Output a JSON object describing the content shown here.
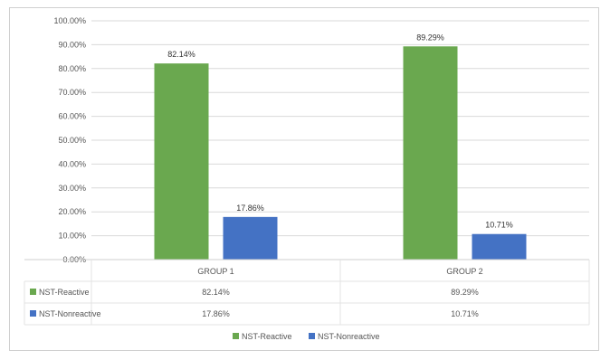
{
  "chart_data": {
    "type": "bar",
    "categories": [
      "GROUP 1",
      "GROUP 2"
    ],
    "series": [
      {
        "name": "NST-Reactive",
        "values": [
          82.14,
          89.29
        ],
        "labels": [
          "82.14%",
          "89.29%"
        ],
        "color": "#6aa84f"
      },
      {
        "name": "NST-Nonreactive",
        "values": [
          17.86,
          10.71
        ],
        "labels": [
          "17.86%",
          "10.71%"
        ],
        "color": "#4472c4"
      }
    ],
    "ylim": [
      0,
      100
    ],
    "yticks": [
      "0.00%",
      "10.00%",
      "20.00%",
      "30.00%",
      "40.00%",
      "50.00%",
      "60.00%",
      "70.00%",
      "80.00%",
      "90.00%",
      "100.00%"
    ],
    "grid": true,
    "legend_position": "bottom",
    "data_table": true
  }
}
